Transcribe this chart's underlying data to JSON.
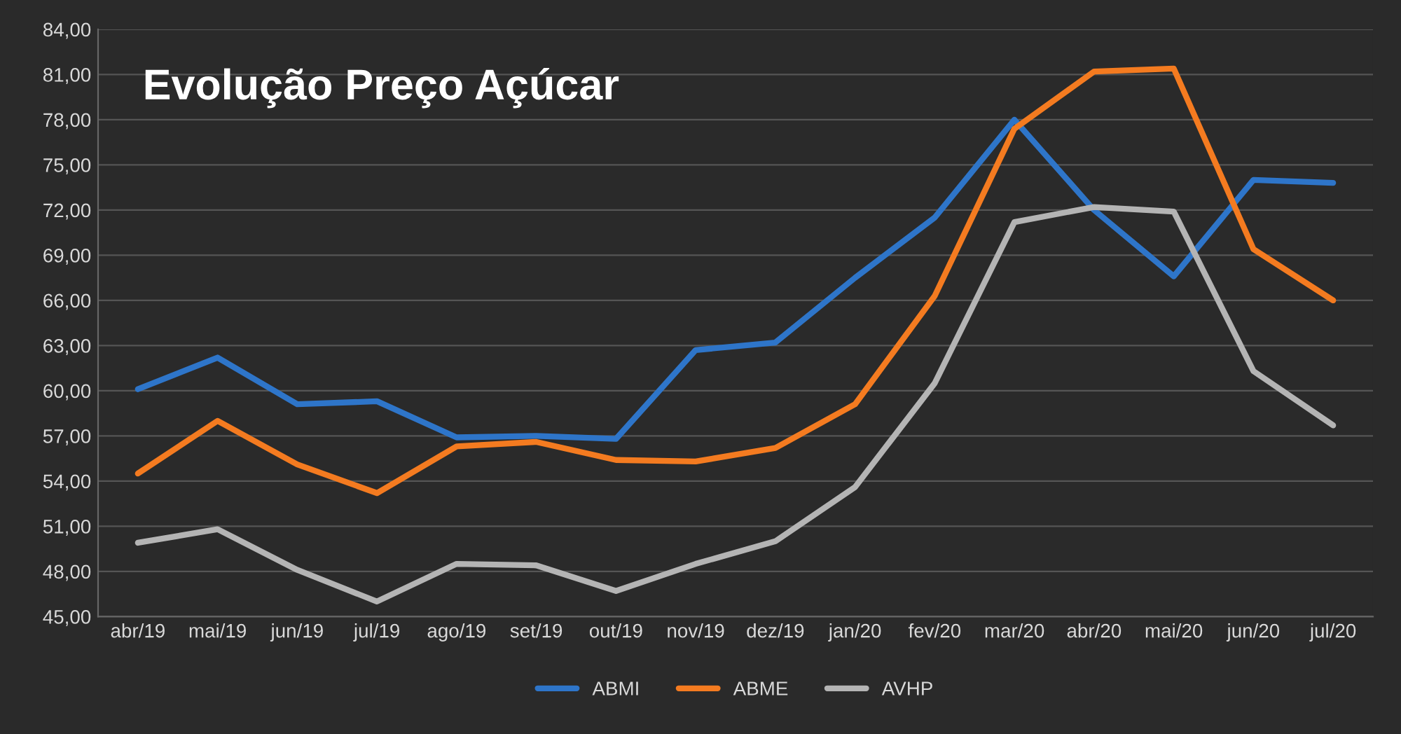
{
  "chart_data": {
    "type": "line",
    "title": "Evolução Preço Açúcar",
    "categories": [
      "abr/19",
      "mai/19",
      "jun/19",
      "jul/19",
      "ago/19",
      "set/19",
      "out/19",
      "nov/19",
      "dez/19",
      "jan/20",
      "fev/20",
      "mar/20",
      "abr/20",
      "mai/20",
      "jun/20",
      "jul/20"
    ],
    "series": [
      {
        "name": "ABMI",
        "color": "#2e75c9",
        "values": [
          60.1,
          62.2,
          59.1,
          59.3,
          56.9,
          57.0,
          56.8,
          62.7,
          63.2,
          67.5,
          71.5,
          78.0,
          72.0,
          67.6,
          74.0,
          73.8
        ]
      },
      {
        "name": "ABME",
        "color": "#f47b20",
        "values": [
          54.5,
          58.0,
          55.1,
          53.2,
          56.3,
          56.6,
          55.4,
          55.3,
          56.2,
          59.1,
          66.3,
          77.4,
          81.2,
          81.4,
          69.4,
          66.0
        ]
      },
      {
        "name": "AVHP",
        "color": "#b4b4b4",
        "values": [
          49.9,
          50.8,
          48.1,
          46.0,
          48.5,
          48.4,
          46.7,
          48.5,
          50.0,
          53.6,
          60.5,
          71.2,
          72.2,
          71.9,
          61.3,
          57.7
        ]
      }
    ],
    "ylim": [
      45,
      84
    ],
    "yticks": [
      {
        "value": 45,
        "label": "45,00"
      },
      {
        "value": 48,
        "label": "48,00"
      },
      {
        "value": 51,
        "label": "51,00"
      },
      {
        "value": 54,
        "label": "54,00"
      },
      {
        "value": 57,
        "label": "57,00"
      },
      {
        "value": 60,
        "label": "60,00"
      },
      {
        "value": 63,
        "label": "63,00"
      },
      {
        "value": 66,
        "label": "66,00"
      },
      {
        "value": 69,
        "label": "69,00"
      },
      {
        "value": 72,
        "label": "72,00"
      },
      {
        "value": 75,
        "label": "75,00"
      },
      {
        "value": 78,
        "label": "78,00"
      },
      {
        "value": 81,
        "label": "81,00"
      },
      {
        "value": 84,
        "label": "84,00"
      }
    ],
    "grid": "y",
    "legend": "bottom",
    "marker": "none",
    "line_style": "solid"
  }
}
